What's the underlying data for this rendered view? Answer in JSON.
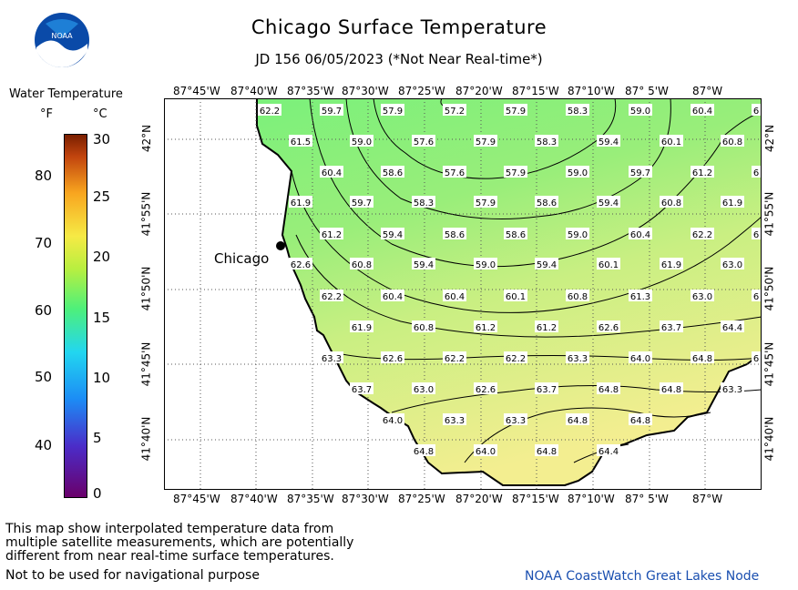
{
  "header": {
    "title": "Chicago Surface Temperature",
    "subtitle": "JD 156 06/05/2023 (*Not Near Real-time*)"
  },
  "logo": {
    "text": "NOAA",
    "icon": "noaa-logo"
  },
  "legend": {
    "title": "Water Temperature",
    "unit_f": "°F",
    "unit_c": "°C",
    "fahrenheit_ticks": [
      "40",
      "50",
      "60",
      "70",
      "80"
    ],
    "celsius_ticks": [
      "0",
      "5",
      "10",
      "15",
      "20",
      "25",
      "30"
    ]
  },
  "axes": {
    "longitudes": [
      "87°45'W",
      "87°40'W",
      "87°35'W",
      "87°30'W",
      "87°25'W",
      "87°20'W",
      "87°15'W",
      "87°10'W",
      "87° 5'W",
      "87°W"
    ],
    "latitudes": [
      "42°N",
      "41°55'N",
      "41°50'N",
      "41°45'N",
      "41°40'N"
    ]
  },
  "city": {
    "name": "Chicago"
  },
  "temperatures": [
    [
      "62.2",
      "59.7",
      "57.9",
      "57.2",
      "57.9",
      "58.3",
      "59.0",
      "60.4",
      "6"
    ],
    [
      "61.5",
      "59.0",
      "57.6",
      "57.9",
      "58.3",
      "59.4",
      "60.1",
      "60.8"
    ],
    [
      "60.4",
      "58.6",
      "57.6",
      "57.9",
      "59.0",
      "59.7",
      "61.2",
      "6"
    ],
    [
      "61.9",
      "59.7",
      "58.3",
      "57.9",
      "58.6",
      "59.4",
      "60.8",
      "61.9"
    ],
    [
      "61.2",
      "59.4",
      "58.6",
      "58.6",
      "59.0",
      "60.4",
      "62.2",
      "6"
    ],
    [
      "62.6",
      "60.8",
      "59.4",
      "59.0",
      "59.4",
      "60.1",
      "61.9",
      "63.0"
    ],
    [
      "62.2",
      "60.4",
      "60.4",
      "60.1",
      "60.8",
      "61.3",
      "63.0",
      "6"
    ],
    [
      "61.9",
      "60.8",
      "61.2",
      "61.2",
      "62.6",
      "63.7",
      "64.4"
    ],
    [
      "63.3",
      "62.6",
      "62.2",
      "62.2",
      "63.3",
      "64.0",
      "64.8",
      "6"
    ],
    [
      "63.7",
      "63.0",
      "62.6",
      "63.7",
      "64.8",
      "64.8",
      "63.3"
    ],
    [
      "64.0",
      "63.3",
      "63.3",
      "64.8",
      "64.8"
    ],
    [
      "64.8",
      "64.0",
      "64.8",
      "64.4"
    ]
  ],
  "footer": {
    "disclaimer_lines": [
      "This map show interpolated temperature data from",
      "multiple satellite measurements, which are potentially",
      "different from near real-time surface temperatures."
    ],
    "nav_warning": "Not to be used for navigational purpose",
    "credit": "NOAA CoastWatch Great Lakes Node"
  },
  "colors": {
    "cool": "#7cf07a",
    "mid": "#b8ee7e",
    "warm": "#f2ee8e",
    "land": "#ffffff"
  }
}
